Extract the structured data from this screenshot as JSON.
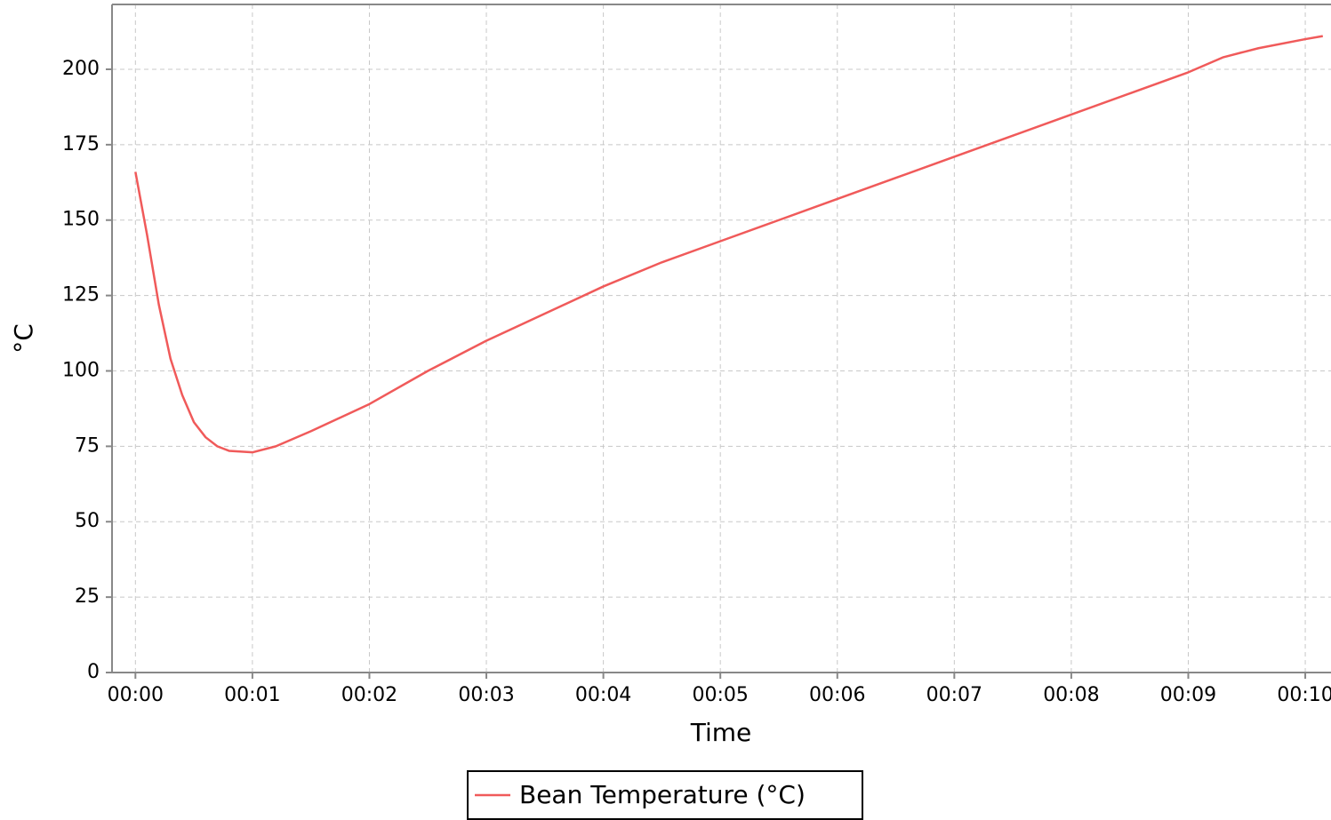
{
  "chart_data": {
    "type": "line",
    "xlabel": "Time",
    "ylabel": "°C",
    "x": [
      0,
      0.1,
      0.2,
      0.3,
      0.4,
      0.5,
      0.6,
      0.7,
      0.8,
      1.0,
      1.2,
      1.5,
      2.0,
      2.5,
      3.0,
      3.5,
      4.0,
      4.5,
      5.0,
      5.5,
      6.0,
      6.5,
      7.0,
      7.5,
      8.0,
      8.5,
      9.0,
      9.3,
      9.6,
      10.0,
      10.15
    ],
    "series": [
      {
        "name": "Bean Temperature (°C)",
        "color": "#f05a5a",
        "values": [
          166,
          145,
          122,
          104,
          92,
          83,
          78,
          75,
          73.5,
          73,
          75,
          80,
          89,
          100,
          110,
          119,
          128,
          136,
          143,
          150,
          157,
          164,
          171,
          178,
          185,
          192,
          199,
          204,
          207,
          210,
          211
        ]
      }
    ],
    "xlim": [
      -0.2,
      10.22
    ],
    "ylim": [
      0,
      221.5
    ],
    "xticks": [
      {
        "value": 0,
        "label": "00:00"
      },
      {
        "value": 1,
        "label": "00:01"
      },
      {
        "value": 2,
        "label": "00:02"
      },
      {
        "value": 3,
        "label": "00:03"
      },
      {
        "value": 4,
        "label": "00:04"
      },
      {
        "value": 5,
        "label": "00:05"
      },
      {
        "value": 6,
        "label": "00:06"
      },
      {
        "value": 7,
        "label": "00:07"
      },
      {
        "value": 8,
        "label": "00:08"
      },
      {
        "value": 9,
        "label": "00:09"
      },
      {
        "value": 10,
        "label": "00:10"
      }
    ],
    "yticks": [
      0,
      25,
      50,
      75,
      100,
      125,
      150,
      175,
      200
    ],
    "grid": true,
    "legend": "bottom"
  }
}
